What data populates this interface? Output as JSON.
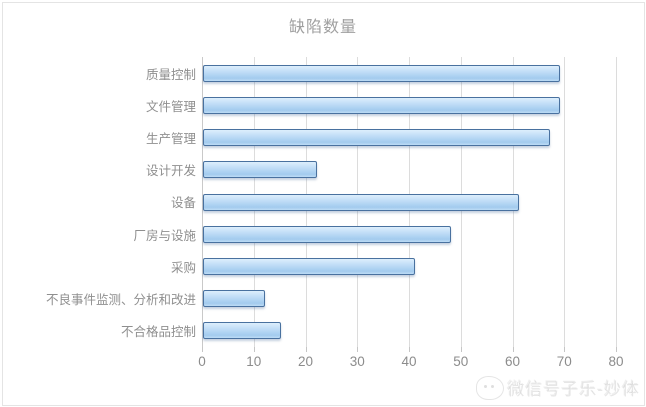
{
  "chart_data": {
    "type": "bar",
    "orientation": "horizontal",
    "title": "缺陷数量",
    "categories": [
      "质量控制",
      "文件管理",
      "生产管理",
      "设计开发",
      "设备",
      "厂房与设施",
      "采购",
      "不良事件监测、分析和改进",
      "不合格品控制"
    ],
    "values": [
      69,
      69,
      67,
      22,
      61,
      48,
      41,
      12,
      15
    ],
    "xlabel": "",
    "ylabel": "",
    "xlim": [
      0,
      80
    ],
    "x_ticks": [
      "0",
      "10",
      "20",
      "30",
      "40",
      "50",
      "60",
      "70",
      "80"
    ],
    "grid": "vertical",
    "legend": "none",
    "colors": {
      "bar_fill": "#bcd9f5",
      "bar_border": "#49719f",
      "gridline": "#dcdcdc",
      "axis_text": "#8c8c8c",
      "title_text": "#a0a0a0"
    }
  },
  "watermark": {
    "icon": "mascot-icon",
    "text": "微信号子乐-妙体"
  }
}
